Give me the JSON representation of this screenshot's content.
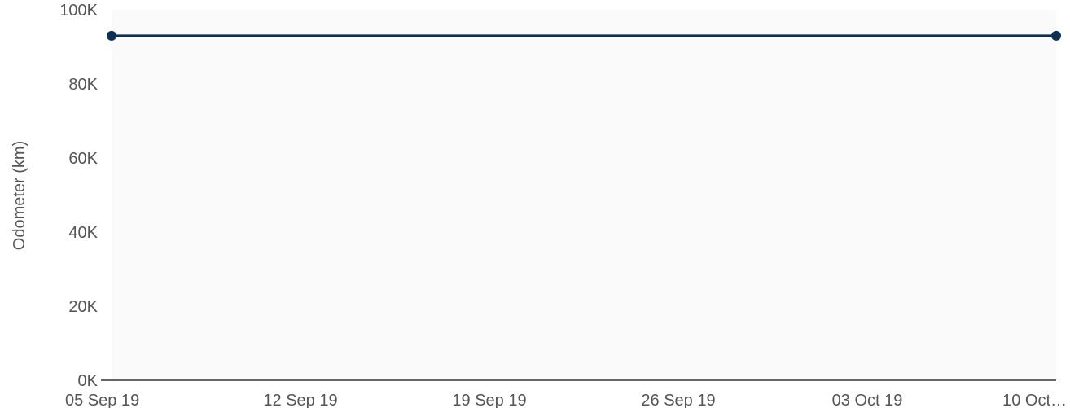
{
  "chart_data": {
    "type": "line",
    "title": "",
    "xlabel": "",
    "ylabel": "Odometer (km)",
    "x_tick_labels": [
      "05 Sep 19",
      "12 Sep 19",
      "19 Sep 19",
      "26 Sep 19",
      "03 Oct 19",
      "10 Oct…"
    ],
    "y_tick_labels": [
      "0K",
      "20K",
      "40K",
      "60K",
      "80K",
      "100K"
    ],
    "y_ticks": [
      0,
      20000,
      40000,
      60000,
      80000,
      100000
    ],
    "ylim": [
      0,
      100000
    ],
    "xlim": [
      "2019-09-05",
      "2019-10-10"
    ],
    "grid": false,
    "series": [
      {
        "x": [
          "2019-09-05",
          "2019-10-10"
        ],
        "y": [
          93000,
          93000
        ],
        "color": "#0d2f57",
        "markers": true
      }
    ]
  }
}
